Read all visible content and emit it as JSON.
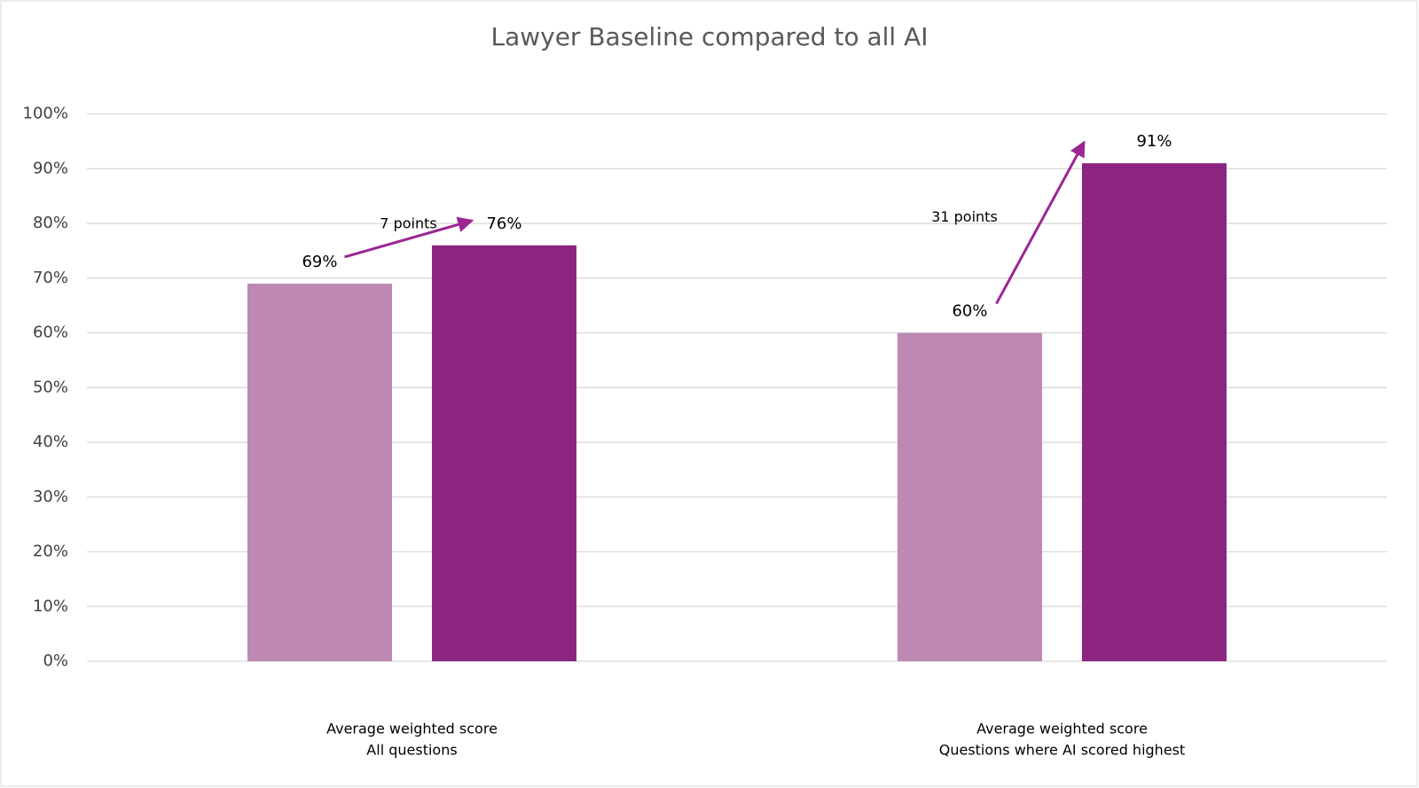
{
  "chart_data": {
    "type": "bar",
    "title": "Lawyer Baseline compared to all AI",
    "categories": [
      [
        "Average weighted score",
        "All questions"
      ],
      [
        "Average weighted score",
        "Questions where AI scored highest"
      ]
    ],
    "series": [
      {
        "color": "#bd89b2",
        "values": [
          69,
          60
        ],
        "value_labels": [
          "69%",
          "60%"
        ]
      },
      {
        "color": "#8b2580",
        "values": [
          76,
          91
        ],
        "value_labels": [
          "76%",
          "91%"
        ]
      }
    ],
    "ylim": [
      0,
      100
    ],
    "yticks": [
      {
        "value": 0,
        "label": "0%"
      },
      {
        "value": 10,
        "label": "10%"
      },
      {
        "value": 20,
        "label": "20%"
      },
      {
        "value": 30,
        "label": "30%"
      },
      {
        "value": 40,
        "label": "40%"
      },
      {
        "value": 50,
        "label": "50%"
      },
      {
        "value": 60,
        "label": "60%"
      },
      {
        "value": 70,
        "label": "70%"
      },
      {
        "value": 80,
        "label": "80%"
      },
      {
        "value": 90,
        "label": "90%"
      },
      {
        "value": 100,
        "label": "100%"
      }
    ],
    "grid": true,
    "annotations": [
      {
        "text": "7 points",
        "color": "#9b2692"
      },
      {
        "text": "31 points",
        "color": "#9b2692"
      }
    ]
  }
}
